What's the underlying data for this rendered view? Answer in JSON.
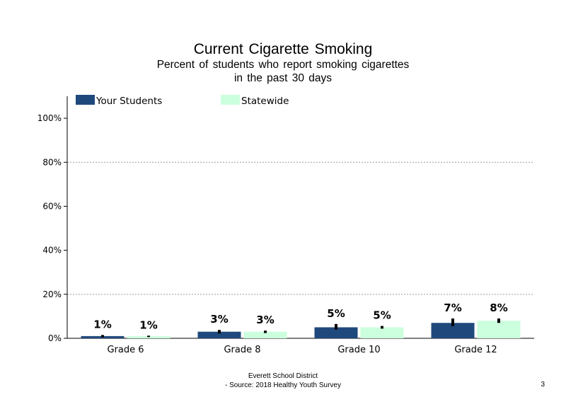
{
  "chart_data": {
    "type": "bar",
    "title": "Current  Cigarette  Smoking",
    "subtitle_lines": [
      "Percent of students  who report smoking cigarettes",
      "in the past 30 days"
    ],
    "categories": [
      "Grade 6",
      "Grade 8",
      "Grade 10",
      "Grade 12"
    ],
    "series": [
      {
        "name": "Your Students",
        "color": "#1f497d",
        "values": [
          1,
          3,
          5,
          7
        ],
        "labels": [
          "1%",
          "3%",
          "5%",
          "7%"
        ],
        "error_low": [
          0.5,
          2.2,
          4.0,
          5.5
        ],
        "error_high": [
          1.5,
          3.8,
          6.5,
          9.0
        ]
      },
      {
        "name": "Statewide",
        "color": "#ccffdd",
        "values": [
          1,
          3,
          5,
          8
        ],
        "labels": [
          "1%",
          "3%",
          "5%",
          "8%"
        ],
        "error_low": [
          0.8,
          2.4,
          4.4,
          7.0
        ],
        "error_high": [
          1.2,
          3.5,
          5.6,
          9.0
        ]
      }
    ],
    "ylim": [
      0,
      110
    ],
    "yticks": [
      0,
      20,
      40,
      60,
      80,
      100
    ],
    "ytick_labels": [
      "0%",
      "20%",
      "40%",
      "60%",
      "80%",
      "100%"
    ],
    "gridlines": [
      20,
      80
    ],
    "legend_position": "top"
  },
  "footer": {
    "district": "Everett School District",
    "source": "- Source: 2018 Healthy  Youth Survey",
    "page_number": "3"
  }
}
